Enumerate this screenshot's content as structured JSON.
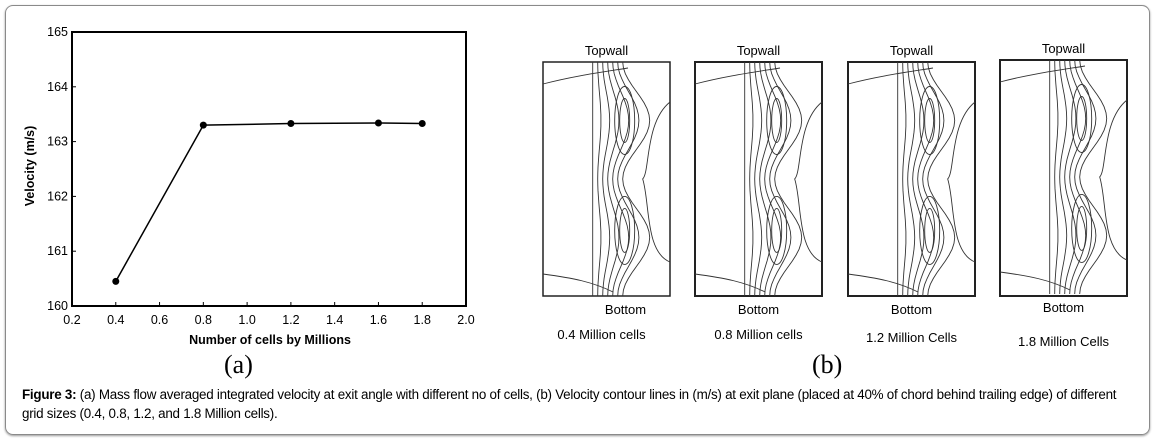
{
  "chart_data": {
    "type": "line",
    "xlabel": "Number of cells by Millions",
    "ylabel": "Velocity (m/s)",
    "xlim": [
      0.2,
      2.0
    ],
    "ylim": [
      160,
      165
    ],
    "xticks": [
      "0.2",
      "0.4",
      "0.6",
      "0.8",
      "1.0",
      "1.2",
      "1.4",
      "1.6",
      "1.8",
      "2.0"
    ],
    "yticks": [
      "160",
      "161",
      "162",
      "163",
      "164",
      "165"
    ],
    "grid": false,
    "x": [
      0.4,
      0.8,
      1.2,
      1.6,
      1.8
    ],
    "y": [
      160.45,
      163.3,
      163.33,
      163.34,
      163.33
    ],
    "color": "#000000"
  },
  "panel_a_label": "(a)",
  "panel_b_label": "(b)",
  "contours": [
    {
      "top": "Topwall",
      "bottom": "Bottom",
      "caption": "0.4 Million cells"
    },
    {
      "top": "Topwall",
      "bottom": "Bottom",
      "caption": "0.8 Million cells"
    },
    {
      "top": "Topwall",
      "bottom": "Bottom",
      "caption": "1.2 Million Cells"
    },
    {
      "top": "Topwall",
      "bottom": "Bottom",
      "caption": "1.8 Million Cells"
    }
  ],
  "caption": {
    "label": "Figure 3:",
    "text": " (a) Mass flow averaged integrated velocity at exit angle with different no of cells, (b) Velocity contour lines in (m/s) at exit plane (placed at 40% of chord behind trailing edge) of different grid sizes (0.4, 0.8, 1.2, and 1.8 Million cells)."
  }
}
